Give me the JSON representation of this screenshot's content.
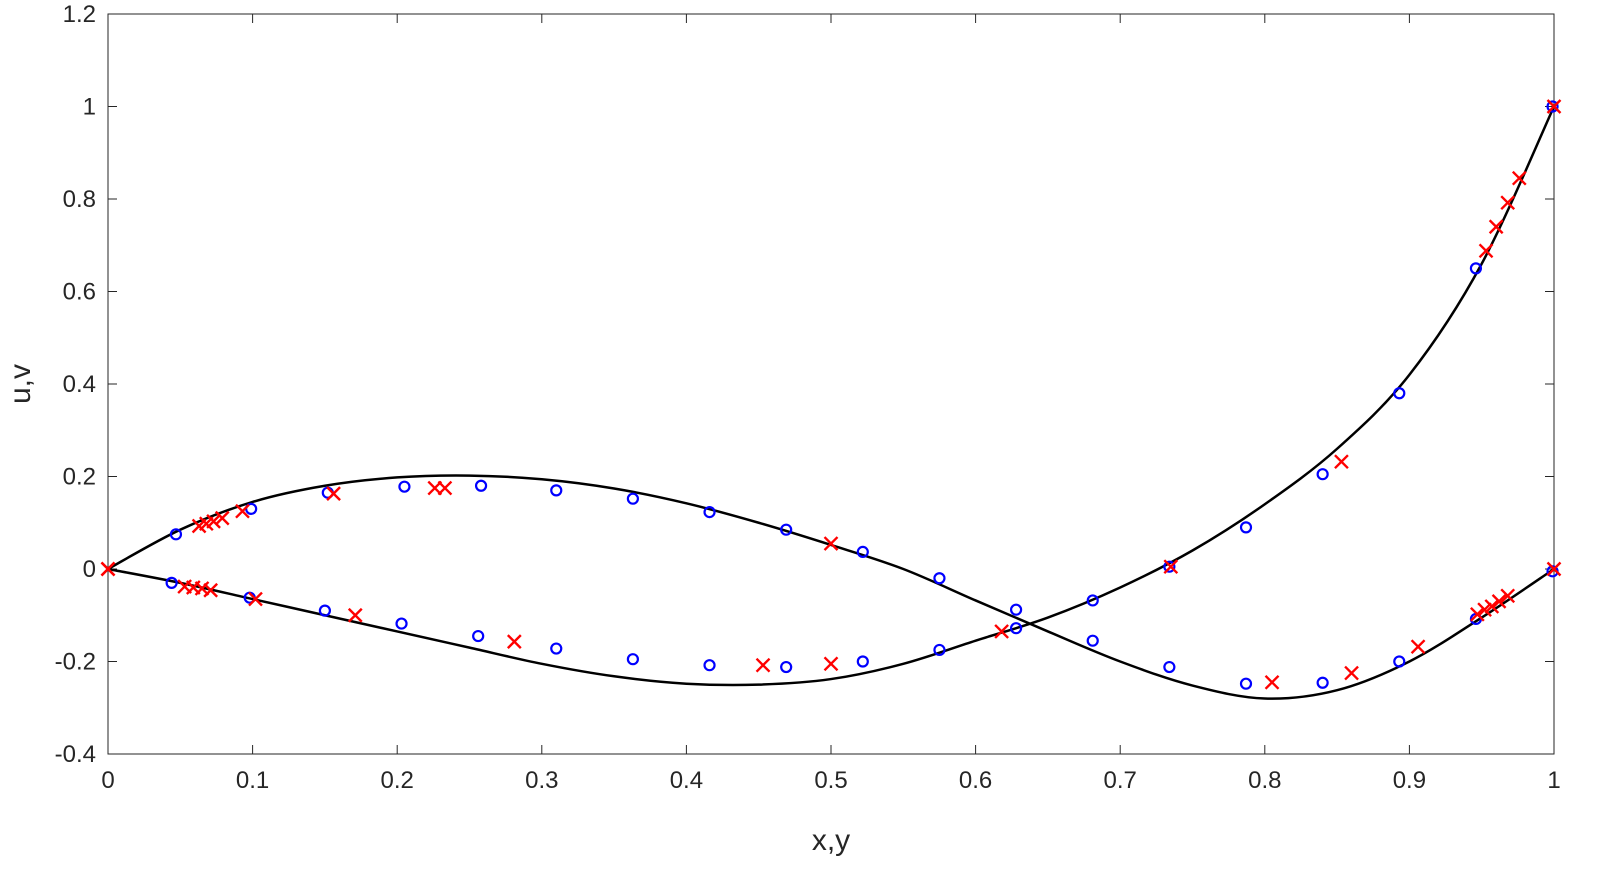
{
  "chart_data": {
    "type": "scatter",
    "title": "",
    "xlabel": "x,y",
    "ylabel": "u,v",
    "xlim": [
      0,
      1
    ],
    "ylim": [
      -0.4,
      1.2
    ],
    "xticks": [
      0,
      0.1,
      0.2,
      0.3,
      0.4,
      0.5,
      0.6,
      0.7,
      0.8,
      0.9,
      1
    ],
    "xtick_labels": [
      "0",
      "0.1",
      "0.2",
      "0.3",
      "0.4",
      "0.5",
      "0.6",
      "0.7",
      "0.8",
      "0.9",
      "1"
    ],
    "yticks": [
      -0.4,
      -0.2,
      0,
      0.2,
      0.4,
      0.6,
      0.8,
      1,
      1.2
    ],
    "ytick_labels": [
      "-0.4",
      "-0.2",
      "0",
      "0.2",
      "0.4",
      "0.6",
      "0.8",
      "1",
      "1.2"
    ],
    "grid": false,
    "series": [
      {
        "kind": "line",
        "color": "#000000",
        "x": [
          0,
          0.05,
          0.1,
          0.15,
          0.2,
          0.25,
          0.3,
          0.35,
          0.4,
          0.45,
          0.5,
          0.55,
          0.6,
          0.65,
          0.7,
          0.75,
          0.8,
          0.85,
          0.9,
          0.95,
          1
        ],
        "values": [
          0,
          0.085,
          0.145,
          0.18,
          0.198,
          0.202,
          0.194,
          0.174,
          0.142,
          0.1,
          0.052,
          0,
          -0.068,
          -0.135,
          -0.2,
          -0.252,
          -0.28,
          -0.262,
          -0.2,
          -0.105,
          0
        ]
      },
      {
        "kind": "line",
        "color": "#000000",
        "x": [
          0,
          0.05,
          0.1,
          0.15,
          0.2,
          0.25,
          0.3,
          0.35,
          0.4,
          0.45,
          0.5,
          0.55,
          0.6,
          0.65,
          0.7,
          0.75,
          0.8,
          0.85,
          0.9,
          0.95,
          1
        ],
        "values": [
          0,
          -0.03,
          -0.065,
          -0.1,
          -0.135,
          -0.17,
          -0.205,
          -0.232,
          -0.248,
          -0.25,
          -0.238,
          -0.205,
          -0.155,
          -0.105,
          -0.04,
          0.04,
          0.14,
          0.26,
          0.42,
          0.66,
          1.0
        ]
      },
      {
        "kind": "marker",
        "marker": "circle",
        "color": "#0000ff",
        "x": [
          0.047,
          0.099,
          0.152,
          0.205,
          0.258,
          0.31,
          0.363,
          0.416,
          0.469,
          0.522,
          0.575,
          0.628,
          0.681,
          0.734,
          0.787,
          0.84,
          0.893,
          0.946,
          0.999
        ],
        "values": [
          0.075,
          0.13,
          0.165,
          0.178,
          0.18,
          0.17,
          0.152,
          0.123,
          0.085,
          0.037,
          -0.02,
          -0.088,
          -0.155,
          -0.212,
          -0.248,
          -0.246,
          -0.2,
          -0.108,
          -0.005
        ]
      },
      {
        "kind": "marker",
        "marker": "circle",
        "color": "#0000ff",
        "x": [
          0.044,
          0.098,
          0.15,
          0.203,
          0.256,
          0.31,
          0.363,
          0.416,
          0.469,
          0.522,
          0.575,
          0.628,
          0.681,
          0.734,
          0.787,
          0.84,
          0.893,
          0.946,
          0.999
        ],
        "values": [
          -0.03,
          -0.062,
          -0.09,
          -0.118,
          -0.145,
          -0.172,
          -0.195,
          -0.208,
          -0.212,
          -0.2,
          -0.175,
          -0.128,
          -0.068,
          0.005,
          0.09,
          0.205,
          0.38,
          0.65,
          1.0
        ]
      },
      {
        "kind": "marker",
        "marker": "cross",
        "color": "#ff0000",
        "x": [
          0,
          0.063,
          0.068,
          0.073,
          0.079,
          0.093,
          0.156,
          0.226,
          0.233,
          0.5,
          0.618,
          0.735,
          0.805,
          0.86,
          0.906,
          0.947,
          0.952,
          0.957,
          0.962,
          0.968,
          1
        ],
        "values": [
          0,
          0.093,
          0.098,
          0.103,
          0.11,
          0.125,
          0.163,
          0.175,
          0.175,
          0.055,
          -0.135,
          0.005,
          -0.245,
          -0.225,
          -0.168,
          -0.098,
          -0.088,
          -0.081,
          -0.07,
          -0.058,
          0
        ]
      },
      {
        "kind": "marker",
        "marker": "cross",
        "color": "#ff0000",
        "x": [
          0,
          0.053,
          0.059,
          0.065,
          0.071,
          0.102,
          0.171,
          0.281,
          0.453,
          0.5,
          0.853,
          0.953,
          0.96,
          0.968,
          0.976,
          1
        ],
        "values": [
          0,
          -0.038,
          -0.04,
          -0.042,
          -0.046,
          -0.065,
          -0.1,
          -0.157,
          -0.208,
          -0.205,
          0.232,
          0.688,
          0.74,
          0.792,
          0.845,
          1.0
        ]
      }
    ]
  }
}
